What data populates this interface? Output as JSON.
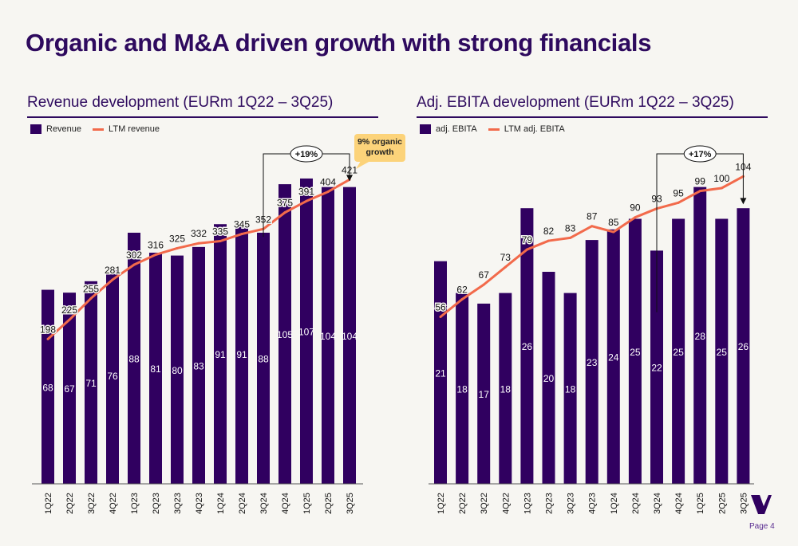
{
  "title": "Organic and M&A driven growth with strong financials",
  "page": "Page 4",
  "colors": {
    "bar": "#300060",
    "line": "#f26a4b",
    "title": "#2e0a5e",
    "callout": "#fcd37a"
  },
  "callout": "9% organic growth",
  "chart_data": [
    {
      "type": "bar+line",
      "title": "Revenue development (EURm 1Q22 – 3Q25)",
      "categories": [
        "1Q22",
        "2Q22",
        "3Q22",
        "4Q22",
        "1Q23",
        "2Q23",
        "3Q23",
        "4Q23",
        "1Q24",
        "2Q24",
        "3Q24",
        "4Q24",
        "1Q25",
        "2Q25",
        "3Q25"
      ],
      "series": [
        {
          "name": "Revenue",
          "kind": "bar",
          "values": [
            68,
            67,
            71,
            76,
            88,
            81,
            80,
            83,
            91,
            91,
            88,
            105,
            107,
            104,
            104
          ]
        },
        {
          "name": "LTM revenue",
          "kind": "line",
          "values": [
            198,
            225,
            255,
            281,
            302,
            316,
            325,
            332,
            335,
            345,
            352,
            375,
            391,
            404,
            421
          ]
        }
      ],
      "annotation": "+19%",
      "legend": "top-left"
    },
    {
      "type": "bar+line",
      "title": "Adj. EBITA development (EURm 1Q22 – 3Q25)",
      "categories": [
        "1Q22",
        "2Q22",
        "3Q22",
        "4Q22",
        "1Q23",
        "2Q23",
        "3Q23",
        "4Q23",
        "1Q24",
        "2Q24",
        "3Q24",
        "4Q24",
        "1Q25",
        "2Q25",
        "3Q25"
      ],
      "series": [
        {
          "name": "adj. EBITA",
          "kind": "bar",
          "values": [
            21,
            18,
            17,
            18,
            26,
            20,
            18,
            23,
            24,
            25,
            22,
            25,
            28,
            25,
            26
          ]
        },
        {
          "name": "LTM adj. EBITA",
          "kind": "line",
          "values": [
            56,
            62,
            67,
            73,
            79,
            82,
            83,
            87,
            85,
            90,
            93,
            95,
            99,
            100,
            104
          ]
        }
      ],
      "annotation": "+17%",
      "legend": "top-left"
    }
  ]
}
